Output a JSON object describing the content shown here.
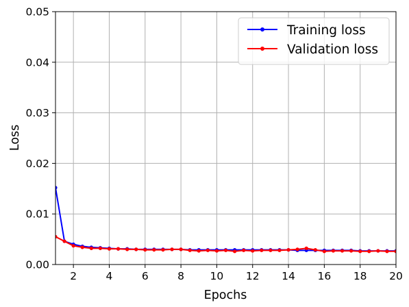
{
  "chart_data": {
    "type": "line",
    "title": "",
    "xlabel": "Epochs",
    "ylabel": "Loss",
    "xlim": [
      1,
      20
    ],
    "ylim": [
      0,
      0.05
    ],
    "xticks": [
      2,
      4,
      6,
      8,
      10,
      12,
      14,
      16,
      18,
      20
    ],
    "yticks": [
      0.0,
      0.01,
      0.02,
      0.03,
      0.04,
      0.05
    ],
    "xtick_labels": [
      "2",
      "4",
      "6",
      "8",
      "10",
      "12",
      "14",
      "16",
      "18",
      "20"
    ],
    "ytick_labels": [
      "0.00",
      "0.01",
      "0.02",
      "0.03",
      "0.04",
      "0.05"
    ],
    "grid": true,
    "legend_position": "top-right",
    "series": [
      {
        "name": "Training loss",
        "color": "#0000ff",
        "marker": "circle",
        "x": [
          1,
          1.5,
          2,
          2.5,
          3,
          3.5,
          4,
          4.5,
          5,
          5.5,
          6,
          6.5,
          7,
          7.5,
          8,
          8.5,
          9,
          9.5,
          10,
          10.5,
          11,
          11.5,
          12,
          12.5,
          13,
          13.5,
          14,
          14.5,
          15,
          15.5,
          16,
          16.5,
          17,
          17.5,
          18,
          18.5,
          19,
          19.5,
          20
        ],
        "y": [
          0.0152,
          0.0046,
          0.004,
          0.0036,
          0.0034,
          0.0033,
          0.0032,
          0.0031,
          0.0031,
          0.003,
          0.003,
          0.003,
          0.003,
          0.003,
          0.003,
          0.0029,
          0.0029,
          0.0029,
          0.0029,
          0.0029,
          0.0029,
          0.0029,
          0.0029,
          0.0029,
          0.0029,
          0.0029,
          0.0029,
          0.0028,
          0.0028,
          0.0028,
          0.0028,
          0.0028,
          0.0028,
          0.0028,
          0.0027,
          0.0027,
          0.0027,
          0.0027,
          0.0027
        ]
      },
      {
        "name": "Validation loss",
        "color": "#ff0000",
        "marker": "circle",
        "x": [
          1,
          1.5,
          2,
          2.5,
          3,
          3.5,
          4,
          4.5,
          5,
          5.5,
          6,
          6.5,
          7,
          7.5,
          8,
          8.5,
          9,
          9.5,
          10,
          10.5,
          11,
          11.5,
          12,
          12.5,
          13,
          13.5,
          14,
          14.5,
          15,
          15.5,
          16,
          16.5,
          17,
          17.5,
          18,
          18.5,
          19,
          19.5,
          20
        ],
        "y": [
          0.0055,
          0.0046,
          0.0037,
          0.0034,
          0.0032,
          0.0032,
          0.0031,
          0.0031,
          0.003,
          0.003,
          0.0029,
          0.0029,
          0.0029,
          0.003,
          0.003,
          0.0028,
          0.0027,
          0.0028,
          0.0027,
          0.0028,
          0.0026,
          0.0028,
          0.0027,
          0.0028,
          0.0028,
          0.0028,
          0.0029,
          0.003,
          0.0032,
          0.0029,
          0.0026,
          0.0027,
          0.0027,
          0.0027,
          0.0026,
          0.0026,
          0.0027,
          0.0026,
          0.0026
        ]
      }
    ]
  }
}
